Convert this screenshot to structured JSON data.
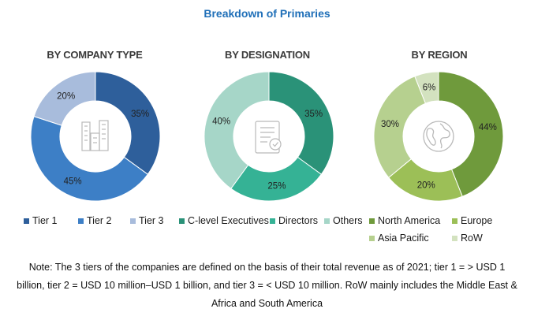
{
  "title": "Breakdown of Primaries",
  "chart_data": [
    {
      "type": "pie",
      "title": "BY COMPANY TYPE",
      "categories": [
        "Tier 1",
        "Tier 2",
        "Tier 3"
      ],
      "values": [
        35,
        45,
        20
      ],
      "labels": [
        "35%",
        "45%",
        "20%"
      ],
      "colors": [
        "#2e5f9b",
        "#3d7fc6",
        "#a8bcdc"
      ],
      "icon": "buildings-icon",
      "legend": "bottom"
    },
    {
      "type": "pie",
      "title": "BY DESIGNATION",
      "categories": [
        "C-level Executives",
        "Directors",
        "Others"
      ],
      "values": [
        35,
        25,
        40
      ],
      "labels": [
        "35%",
        "25%",
        "40%"
      ],
      "colors": [
        "#2a9278",
        "#35b295",
        "#a6d6c8"
      ],
      "icon": "certificate-icon",
      "legend": "bottom"
    },
    {
      "type": "pie",
      "title": "BY REGION",
      "categories": [
        "North America",
        "Europe",
        "Asia Pacific",
        "RoW"
      ],
      "values": [
        44,
        20,
        30,
        6
      ],
      "labels": [
        "44%",
        "20%",
        "30%",
        "6%"
      ],
      "colors": [
        "#6f9a3c",
        "#9cbf57",
        "#b6d08f",
        "#d3e2bf"
      ],
      "icon": "globe-icon",
      "legend": "bottom"
    }
  ],
  "note": {
    "line1": "Note: The 3 tiers of the companies are defined on the basis of their total revenue as of 2021; tier 1 = > USD 1",
    "line2": "billion, tier 2 = USD 10 million–USD 1 billion, and tier 3 = < USD 10 million. RoW mainly includes the Middle East &",
    "line3": "Africa and South America"
  }
}
